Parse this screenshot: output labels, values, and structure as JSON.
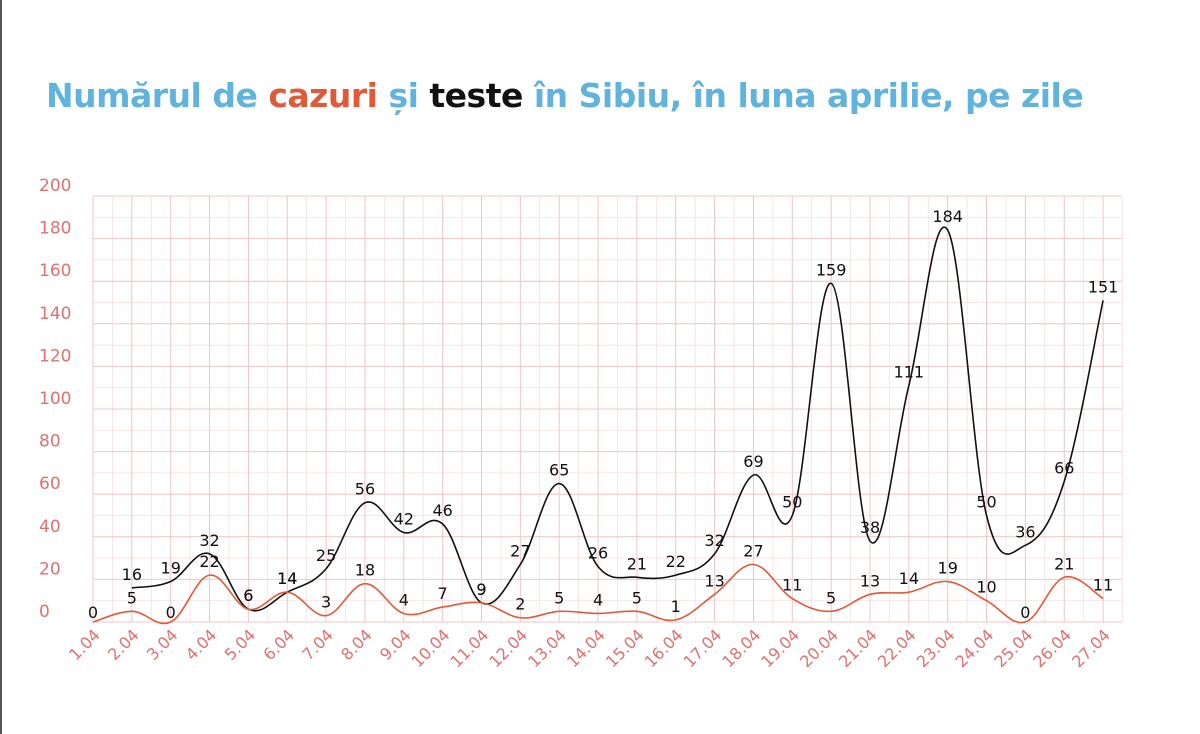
{
  "title": {
    "part1": "Numărul de ",
    "part2": "cazuri",
    "part3": " și ",
    "part4": "teste",
    "part5": " în Sibiu, în luna aprilie, pe zile"
  },
  "colors": {
    "title_blue": "#5fb3dd",
    "cases": "#e05a3a",
    "tests": "#111111",
    "grid": "#f2c4c4",
    "axis_labels": "#e07070",
    "value_labels": "#111111"
  },
  "chart_data": {
    "type": "line",
    "categories": [
      "1.04",
      "2.04",
      "3.04",
      "4.04",
      "5.04",
      "6.04",
      "7.04",
      "8.04",
      "9.04",
      "10.04",
      "11.04",
      "12.04",
      "13.04",
      "14.04",
      "15.04",
      "16.04",
      "17.04",
      "18.04",
      "19.04",
      "20.04",
      "21.04",
      "22.04",
      "23.04",
      "24.04",
      "25.04",
      "26.04",
      "27.04"
    ],
    "series": [
      {
        "name": "teste",
        "color": "#111111",
        "values": [
          null,
          16,
          19,
          32,
          6,
          14,
          25,
          56,
          42,
          46,
          9,
          27,
          65,
          26,
          21,
          22,
          32,
          69,
          50,
          159,
          38,
          111,
          184,
          50,
          36,
          66,
          151
        ]
      },
      {
        "name": "cazuri",
        "color": "#e05a3a",
        "values": [
          0,
          5,
          0,
          22,
          6,
          14,
          3,
          18,
          4,
          7,
          9,
          2,
          5,
          4,
          5,
          1,
          13,
          27,
          11,
          5,
          13,
          14,
          19,
          10,
          0,
          21,
          11
        ]
      }
    ],
    "yticks": [
      0,
      20,
      40,
      60,
      80,
      100,
      120,
      140,
      160,
      180,
      200
    ],
    "ylim": [
      0,
      200
    ],
    "grid": true,
    "legend": "none"
  }
}
